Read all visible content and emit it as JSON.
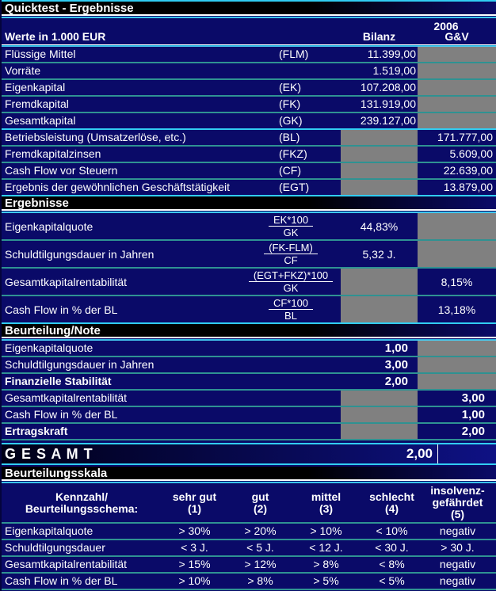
{
  "title": "Quicktest - Ergebnisse",
  "colors": {
    "background_navy": "#0a0a68",
    "section_bar_black": "#000000",
    "separator_teal": "#2f9292",
    "separator_cyan": "#31cdf2",
    "disabled_cell_grey": "#808080",
    "text": "#ffffff"
  },
  "header": {
    "year": "2006",
    "unit_label": "Werte in 1.000 EUR",
    "col_bilanz": "Bilanz",
    "col_gv": "G&V"
  },
  "input_rows": [
    {
      "label": "Flüssige Mittel",
      "code": "(FLM)",
      "bilanz": "11.399,00",
      "gv": ""
    },
    {
      "label": "Vorräte",
      "code": "",
      "bilanz": "1.519,00",
      "gv": ""
    },
    {
      "label": "Eigenkapital",
      "code": "(EK)",
      "bilanz": "107.208,00",
      "gv": ""
    },
    {
      "label": "Fremdkapital",
      "code": "(FK)",
      "bilanz": "131.919,00",
      "gv": ""
    },
    {
      "label": "Gesamtkapital",
      "code": "(GK)",
      "bilanz": "239.127,00",
      "gv": ""
    },
    {
      "label": "Betriebsleistung (Umsatzerlöse, etc.)",
      "code": "(BL)",
      "bilanz": "",
      "gv": "171.777,00"
    },
    {
      "label": "Fremdkapitalzinsen",
      "code": "(FKZ)",
      "bilanz": "",
      "gv": "5.609,00"
    },
    {
      "label": "Cash Flow vor Steuern",
      "code": "(CF)",
      "bilanz": "",
      "gv": "22.639,00"
    },
    {
      "label": "Ergebnis der gewöhnlichen Geschäftstätigkeit",
      "code": "(EGT)",
      "bilanz": "",
      "gv": "13.879,00"
    }
  ],
  "sections": {
    "results": "Ergebnisse",
    "rating": "Beurteilung/Note",
    "scale": "Beurteilungsskala"
  },
  "result_rows": [
    {
      "label": "Eigenkapitalquote",
      "formula_num": "EK*100",
      "formula_den": "GK",
      "bilanz": "44,83%",
      "gv": ""
    },
    {
      "label": "Schuldtilgungsdauer in Jahren",
      "formula_num": "(FK-FLM)",
      "formula_den": "CF",
      "bilanz": "5,32 J.",
      "gv": ""
    },
    {
      "label": "Gesamtkapitalrentabilität",
      "formula_num": "(EGT+FKZ)*100",
      "formula_den": "GK",
      "bilanz": "",
      "gv": "8,15%"
    },
    {
      "label": "Cash Flow in % der BL",
      "formula_num": "CF*100",
      "formula_den": "BL",
      "bilanz": "",
      "gv": "13,18%"
    }
  ],
  "rating_rows": [
    {
      "label": "Eigenkapitalquote",
      "bilanz": "1,00",
      "gv": ""
    },
    {
      "label": "Schuldtilgungsdauer in Jahren",
      "bilanz": "3,00",
      "gv": ""
    },
    {
      "label": "Finanzielle Stabilität",
      "bilanz": "2,00",
      "gv": ""
    },
    {
      "label": "Gesamtkapitalrentabilität",
      "bilanz": "",
      "gv": "3,00"
    },
    {
      "label": "Cash Flow in % der BL",
      "bilanz": "",
      "gv": "1,00"
    },
    {
      "label": "Ertragskraft",
      "bilanz": "",
      "gv": "2,00"
    }
  ],
  "total": {
    "label": "G E S A M T",
    "value": "2,00"
  },
  "scale_table": {
    "header_label": "Kennzahl/\nBeurteilungsschema:",
    "columns": [
      "sehr gut\n(1)",
      "gut\n(2)",
      "mittel\n(3)",
      "schlecht\n(4)",
      "insolvenz-\ngefährdet\n(5)"
    ],
    "rows": [
      {
        "label": "Eigenkapitalquote",
        "values": [
          "> 30%",
          "> 20%",
          "> 10%",
          "< 10%",
          "negativ"
        ]
      },
      {
        "label": "Schuldtilgungsdauer",
        "values": [
          "< 3 J.",
          "< 5 J.",
          "< 12 J.",
          "< 30 J.",
          "> 30 J."
        ]
      },
      {
        "label": "Gesamtkapitalrentabilität",
        "values": [
          "> 15%",
          "> 12%",
          "> 8%",
          "< 8%",
          "negativ"
        ]
      },
      {
        "label": "Cash Flow in % der BL",
        "values": [
          "> 10%",
          "> 8%",
          "> 5%",
          "< 5%",
          "negativ"
        ]
      }
    ]
  }
}
